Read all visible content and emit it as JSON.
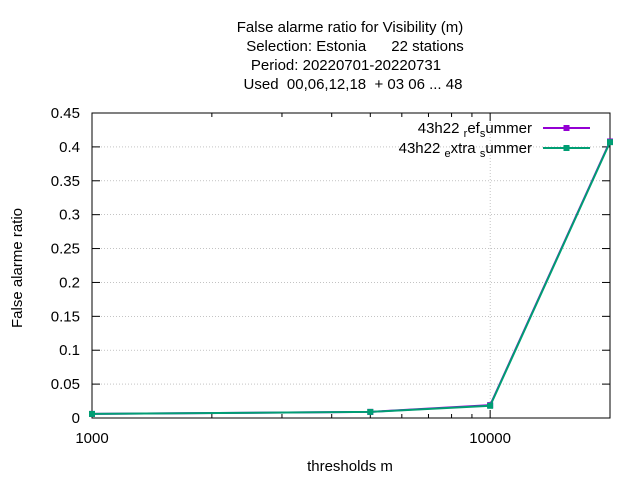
{
  "chart_data": {
    "type": "line",
    "title_lines": [
      "False alarme ratio  for Visibility (m)",
      "Selection: Estonia      22 stations",
      "Period: 20220701-20220731",
      "Used  00,06,12,18  + 03 06 ... 48"
    ],
    "xlabel": "thresholds m",
    "ylabel": "False alarme ratio",
    "xscale": "log",
    "xlim": [
      1000,
      20000
    ],
    "ylim": [
      0,
      0.45
    ],
    "x_ticks": [
      1000,
      10000
    ],
    "x_tick_labels": [
      "1000",
      "10000"
    ],
    "y_ticks": [
      0,
      0.05,
      0.1,
      0.15,
      0.2,
      0.25,
      0.3,
      0.35,
      0.4,
      0.45
    ],
    "y_tick_labels": [
      "0",
      "0.05",
      "0.1",
      "0.15",
      "0.2",
      "0.25",
      "0.3",
      "0.35",
      "0.4",
      "0.45"
    ],
    "grid": true,
    "legend_position": "top-right",
    "x": [
      1000,
      5000,
      10000,
      20000
    ],
    "series": [
      {
        "name": "43h22_ref_summer",
        "legend_parts": [
          "43h22 ",
          "r",
          "ef",
          "s",
          "ummer"
        ],
        "color": "#9400d3",
        "values": [
          0.006,
          0.009,
          0.019,
          0.408
        ]
      },
      {
        "name": "43h22_extra_summer",
        "legend_parts": [
          "43h22 ",
          "e",
          "xtra ",
          "s",
          "ummer"
        ],
        "color": "#009e73",
        "values": [
          0.006,
          0.009,
          0.018,
          0.407
        ]
      }
    ]
  }
}
